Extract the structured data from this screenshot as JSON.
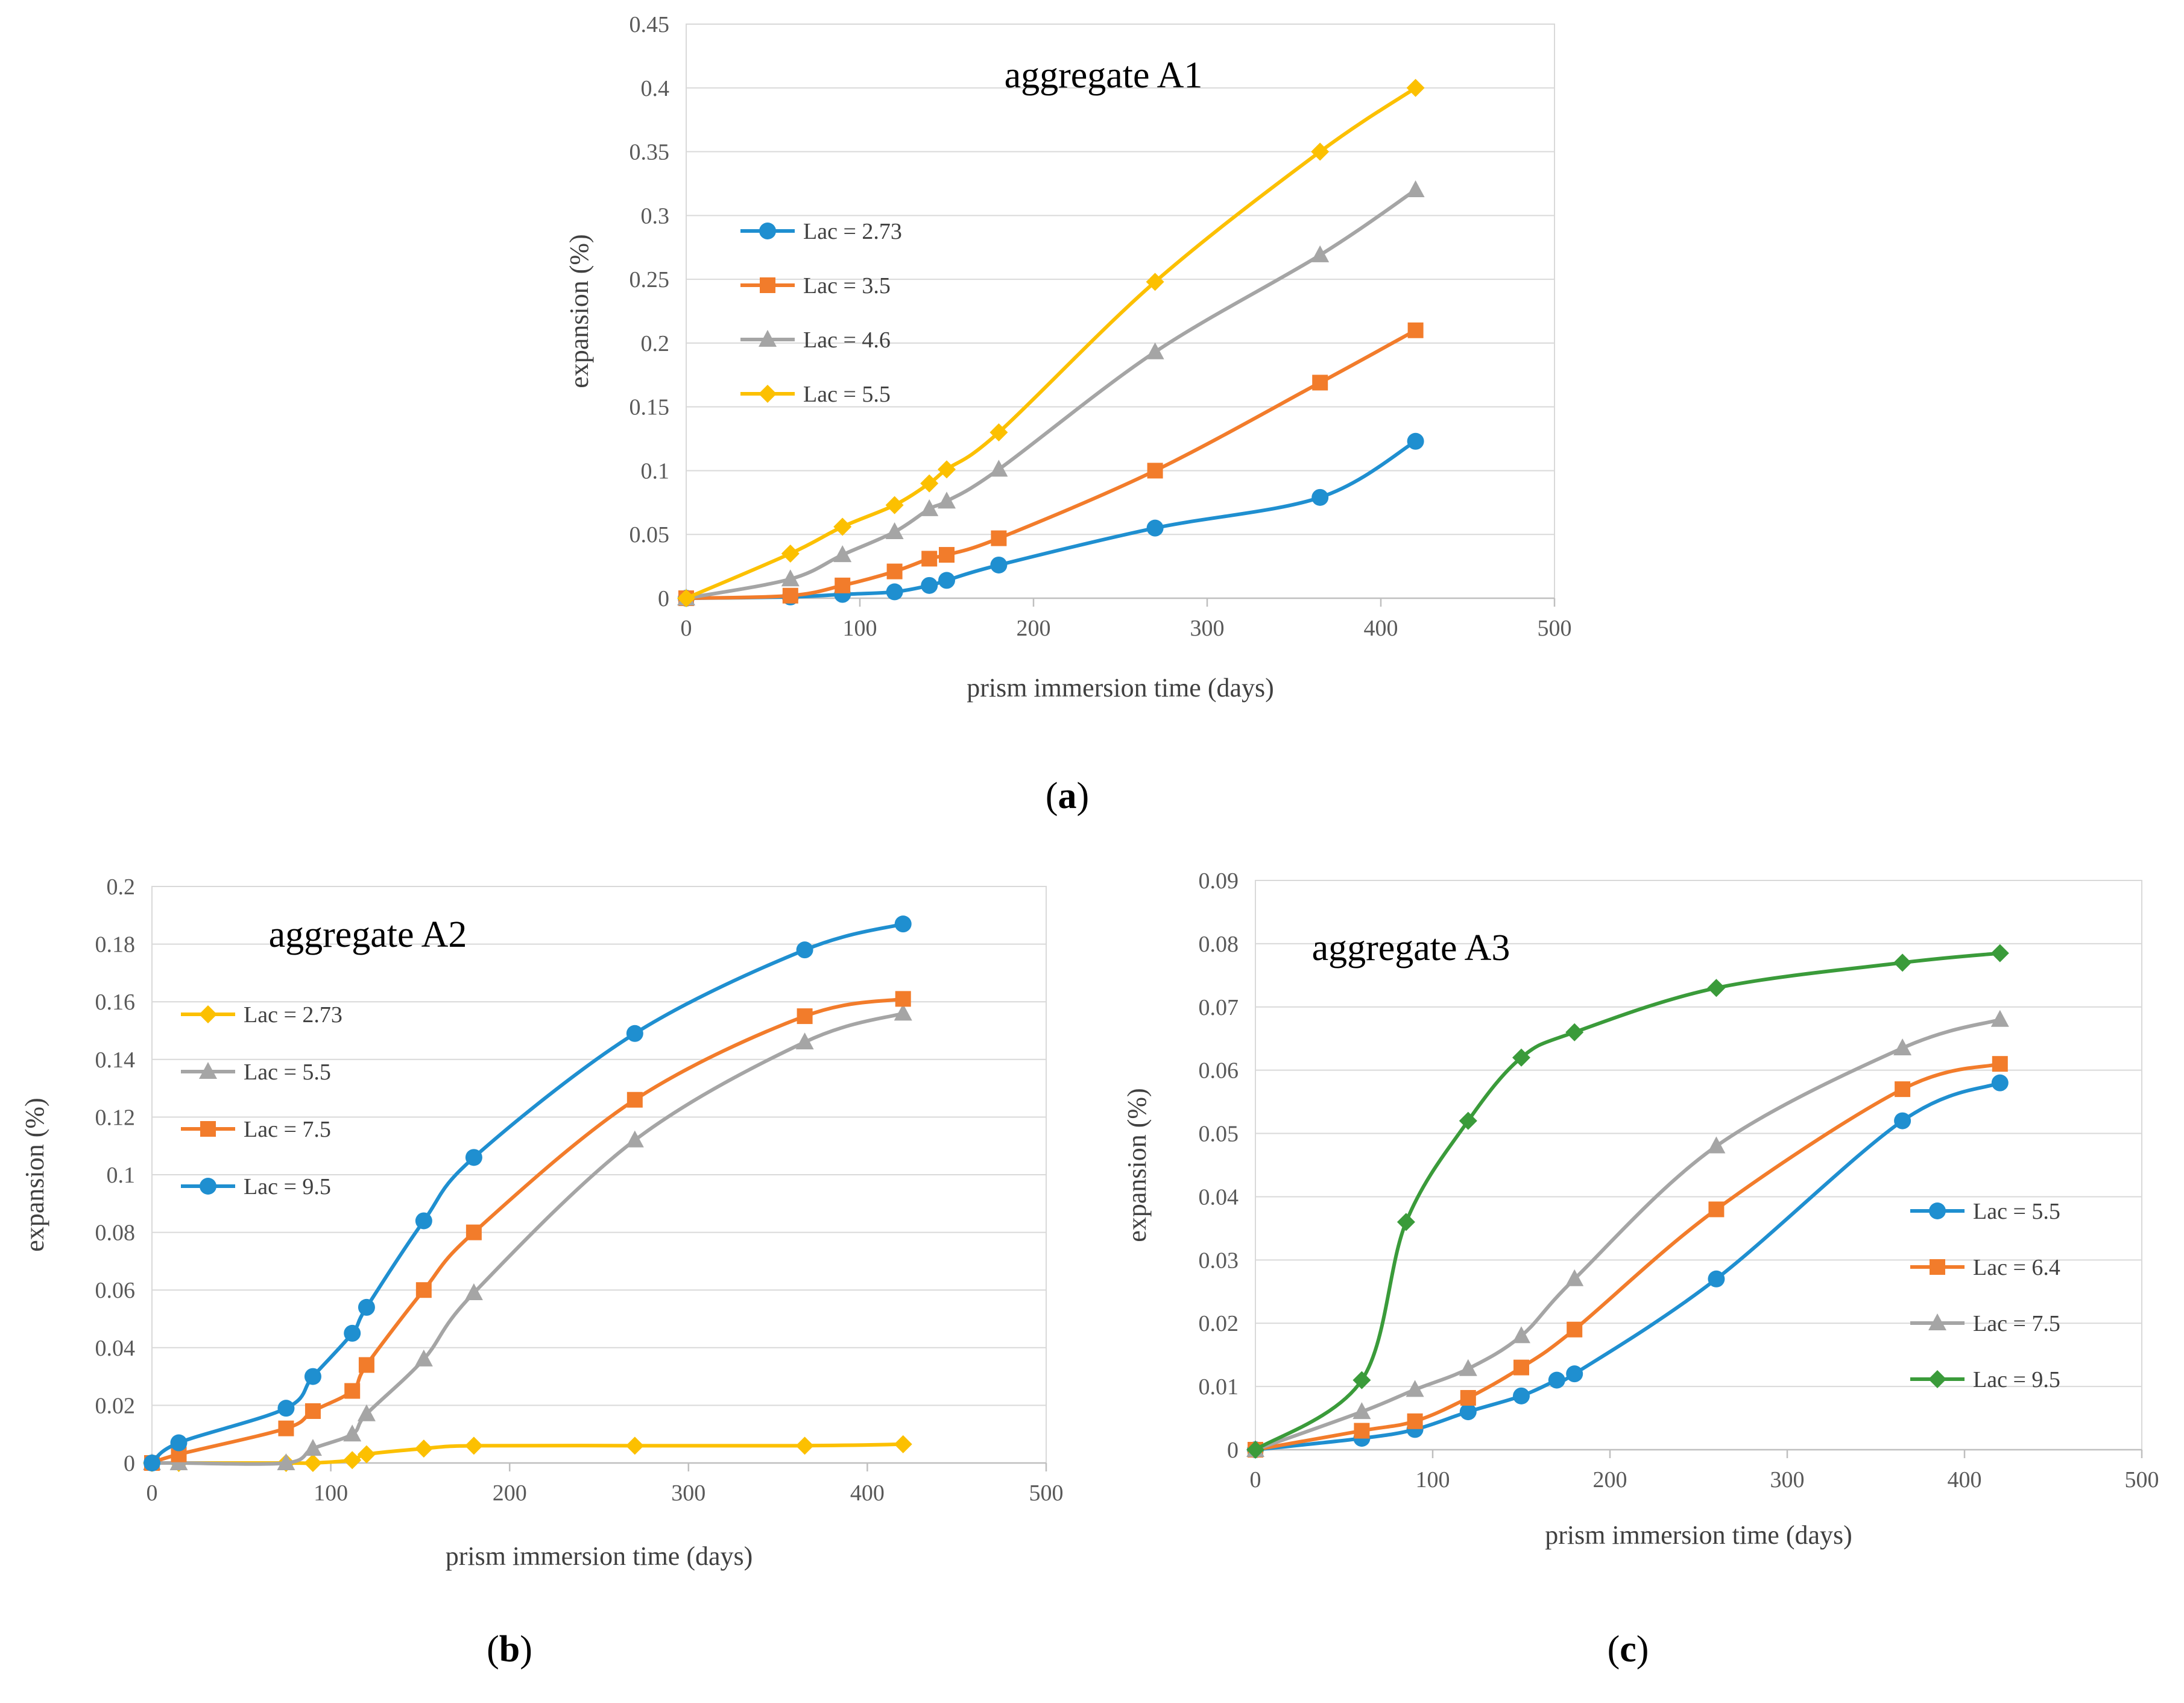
{
  "chart_data": [
    {
      "id": "a",
      "type": "line",
      "title": "aggregate A1",
      "caption": "a",
      "xlabel": "prism immersion time (days)",
      "ylabel": "expansion (%)",
      "xlim": [
        0,
        500
      ],
      "ylim": [
        0,
        0.45
      ],
      "xticks": [
        0,
        100,
        200,
        300,
        400,
        500
      ],
      "yticks": [
        0,
        0.05,
        0.1,
        0.15,
        0.2,
        0.25,
        0.3,
        0.35,
        0.4,
        0.45
      ],
      "grid": "horizontal",
      "legend_position": "left",
      "series": [
        {
          "name": "Lac = 2.73",
          "color": "#1f8fd0",
          "marker": "circle",
          "x": [
            0,
            60,
            90,
            120,
            140,
            150,
            180,
            270,
            365,
            420
          ],
          "y": [
            0,
            0.001,
            0.003,
            0.005,
            0.01,
            0.014,
            0.026,
            0.055,
            0.079,
            0.123
          ]
        },
        {
          "name": "Lac = 3.5",
          "color": "#f27c2b",
          "marker": "square",
          "x": [
            0,
            60,
            90,
            120,
            140,
            150,
            180,
            270,
            365,
            420
          ],
          "y": [
            0,
            0.002,
            0.01,
            0.021,
            0.031,
            0.034,
            0.047,
            0.1,
            0.169,
            0.21
          ]
        },
        {
          "name": "Lac = 4.6",
          "color": "#a5a5a5",
          "marker": "triangle",
          "x": [
            0,
            60,
            90,
            120,
            140,
            150,
            180,
            270,
            365,
            420
          ],
          "y": [
            0,
            0.015,
            0.034,
            0.052,
            0.07,
            0.076,
            0.101,
            0.193,
            0.269,
            0.32
          ]
        },
        {
          "name": "Lac = 5.5",
          "color": "#fcc000",
          "marker": "diamond",
          "x": [
            0,
            60,
            90,
            120,
            140,
            150,
            180,
            270,
            365,
            420
          ],
          "y": [
            0,
            0.035,
            0.056,
            0.073,
            0.09,
            0.101,
            0.13,
            0.248,
            0.35,
            0.4
          ]
        }
      ]
    },
    {
      "id": "b",
      "type": "line",
      "title": "aggregate A2",
      "caption": "b",
      "xlabel": "prism immersion time (days)",
      "ylabel": "expansion (%)",
      "xlim": [
        0,
        500
      ],
      "ylim": [
        0,
        0.2
      ],
      "xticks": [
        0,
        100,
        200,
        300,
        400,
        500
      ],
      "yticks": [
        0,
        0.02,
        0.04,
        0.06,
        0.08,
        0.1,
        0.12,
        0.14,
        0.16,
        0.18,
        0.2
      ],
      "grid": "horizontal",
      "legend_position": "left",
      "series": [
        {
          "name": "Lac = 2.73",
          "color": "#fcc000",
          "marker": "diamond",
          "x": [
            0,
            15,
            75,
            90,
            112,
            120,
            152,
            180,
            270,
            365,
            420
          ],
          "y": [
            0,
            0,
            0,
            0,
            0.001,
            0.003,
            0.005,
            0.006,
            0.006,
            0.006,
            0.0065
          ]
        },
        {
          "name": "Lac = 5.5",
          "color": "#a5a5a5",
          "marker": "triangle",
          "x": [
            0,
            15,
            75,
            90,
            112,
            120,
            152,
            180,
            270,
            365,
            420
          ],
          "y": [
            0,
            0,
            0,
            0.005,
            0.01,
            0.017,
            0.036,
            0.059,
            0.112,
            0.146,
            0.156
          ]
        },
        {
          "name": "Lac = 7.5",
          "color": "#f27c2b",
          "marker": "square",
          "x": [
            0,
            15,
            75,
            90,
            112,
            120,
            152,
            180,
            270,
            365,
            420
          ],
          "y": [
            0,
            0.003,
            0.012,
            0.018,
            0.025,
            0.034,
            0.06,
            0.08,
            0.126,
            0.155,
            0.161
          ]
        },
        {
          "name": "Lac = 9.5",
          "color": "#1f8fd0",
          "marker": "circle",
          "x": [
            0,
            15,
            75,
            90,
            112,
            120,
            152,
            180,
            270,
            365,
            420
          ],
          "y": [
            0,
            0.007,
            0.019,
            0.03,
            0.045,
            0.054,
            0.084,
            0.106,
            0.149,
            0.178,
            0.187
          ]
        }
      ]
    },
    {
      "id": "c",
      "type": "line",
      "title": "aggregate A3",
      "caption": "c",
      "xlabel": "prism immersion time (days)",
      "ylabel": "expansion (%)",
      "xlim": [
        0,
        500
      ],
      "ylim": [
        0,
        0.09
      ],
      "xticks": [
        0,
        100,
        200,
        300,
        400,
        500
      ],
      "yticks": [
        0,
        0.01,
        0.02,
        0.03,
        0.04,
        0.05,
        0.06,
        0.07,
        0.08,
        0.09
      ],
      "grid": "horizontal",
      "legend_position": "right",
      "series": [
        {
          "name": "Lac = 5.5",
          "color": "#1f8fd0",
          "marker": "circle",
          "x": [
            0,
            60,
            90,
            120,
            150,
            170,
            180,
            260,
            365,
            420
          ],
          "y": [
            0,
            0.0018,
            0.0032,
            0.006,
            0.0085,
            0.011,
            0.012,
            0.027,
            0.052,
            0.058
          ]
        },
        {
          "name": "Lac = 6.4",
          "color": "#f27c2b",
          "marker": "square",
          "x": [
            0,
            60,
            90,
            120,
            150,
            180,
            260,
            365,
            420
          ],
          "y": [
            0,
            0.003,
            0.0045,
            0.0082,
            0.013,
            0.019,
            0.038,
            0.057,
            0.061
          ]
        },
        {
          "name": "Lac = 7.5",
          "color": "#a5a5a5",
          "marker": "triangle",
          "x": [
            0,
            60,
            90,
            120,
            150,
            180,
            260,
            365,
            420
          ],
          "y": [
            0,
            0.006,
            0.0095,
            0.0128,
            0.018,
            0.027,
            0.048,
            0.0635,
            0.068
          ]
        },
        {
          "name": "Lac = 9.5",
          "color": "#3a9b3a",
          "marker": "diamond",
          "x": [
            0,
            60,
            85,
            120,
            150,
            180,
            260,
            365,
            420
          ],
          "y": [
            0,
            0.011,
            0.036,
            0.052,
            0.062,
            0.066,
            0.073,
            0.077,
            0.0785
          ]
        }
      ]
    }
  ]
}
